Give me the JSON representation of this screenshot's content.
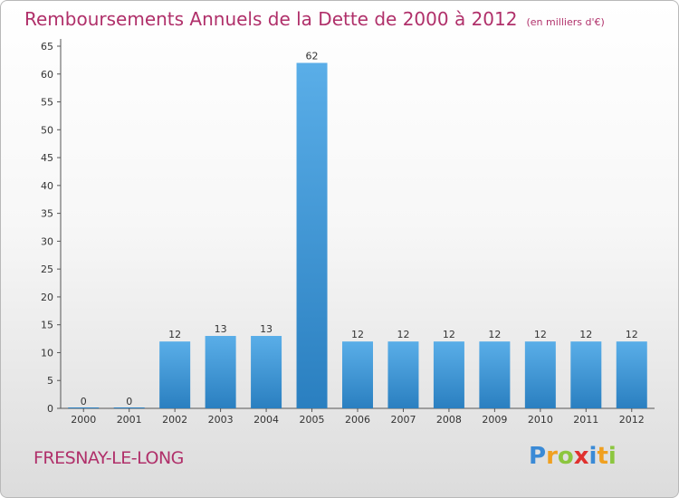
{
  "title": "Remboursements Annuels de la Dette de 2000 à 2012",
  "subtitle": "(en milliers d'€)",
  "commune": "FRESNAY-LE-LONG",
  "logo": {
    "letters": [
      "P",
      "r",
      "o",
      "x",
      "i",
      "t",
      "i"
    ],
    "colors": [
      "#3a8ad6",
      "#f0a020",
      "#8cc63f",
      "#e0312e",
      "#3a8ad6",
      "#f0a020",
      "#8cc63f"
    ]
  },
  "colors": {
    "bar_top": "#5aaee8",
    "bar_bottom": "#2a7fc0",
    "title": "#b0306a"
  },
  "chart_data": {
    "type": "bar",
    "categories": [
      "2000",
      "2001",
      "2002",
      "2003",
      "2004",
      "2005",
      "2006",
      "2007",
      "2008",
      "2009",
      "2010",
      "2011",
      "2012"
    ],
    "values": [
      0,
      0,
      12,
      13,
      13,
      62,
      12,
      12,
      12,
      12,
      12,
      12,
      12
    ],
    "data_labels": [
      "0",
      "0",
      "12",
      "13",
      "13",
      "62",
      "12",
      "12",
      "12",
      "12",
      "12",
      "12",
      "12"
    ],
    "yticks": [
      "0",
      "5",
      "10",
      "15",
      "20",
      "25",
      "30",
      "35",
      "40",
      "45",
      "50",
      "55",
      "60",
      "65"
    ],
    "ylim": [
      0,
      65
    ],
    "grid": false,
    "title": "Remboursements Annuels de la Dette de 2000 à 2012",
    "xlabel": "",
    "ylabel": ""
  }
}
